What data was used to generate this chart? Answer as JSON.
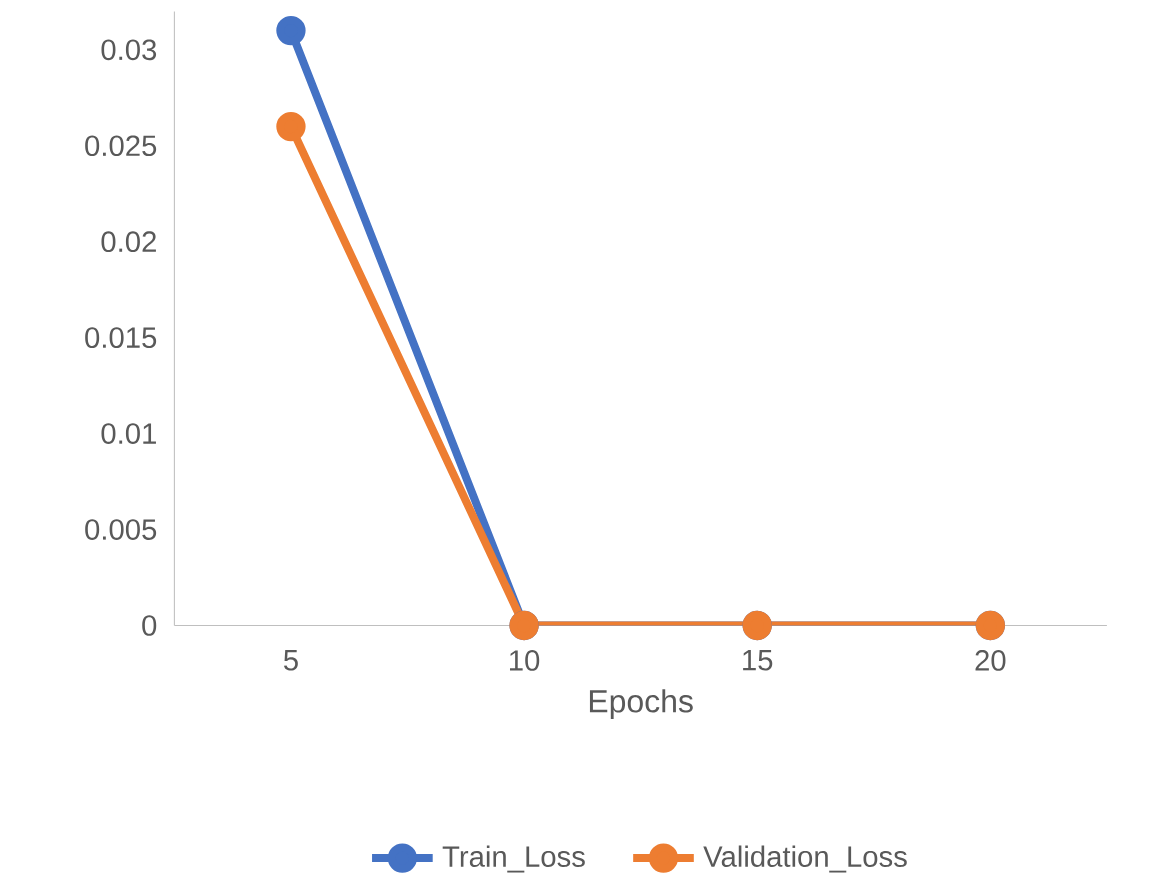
{
  "chart_data": {
    "type": "line",
    "categories": [
      "5",
      "10",
      "15",
      "20"
    ],
    "xlabel": "Epochs",
    "series": [
      {
        "name": "Train_Loss",
        "color": "#4472c4",
        "values": [
          0.031,
          0,
          0,
          0
        ]
      },
      {
        "name": "Validation_Loss",
        "color": "#ed7d31",
        "values": [
          0.026,
          0,
          0,
          0
        ]
      }
    ],
    "ylim": [
      0,
      0.032
    ],
    "yticks": [
      0,
      0.005,
      0.01,
      0.015,
      0.02,
      0.025,
      0.03
    ],
    "grid": false,
    "legend": "bottom",
    "marker": "circle",
    "line_style": "solid"
  }
}
